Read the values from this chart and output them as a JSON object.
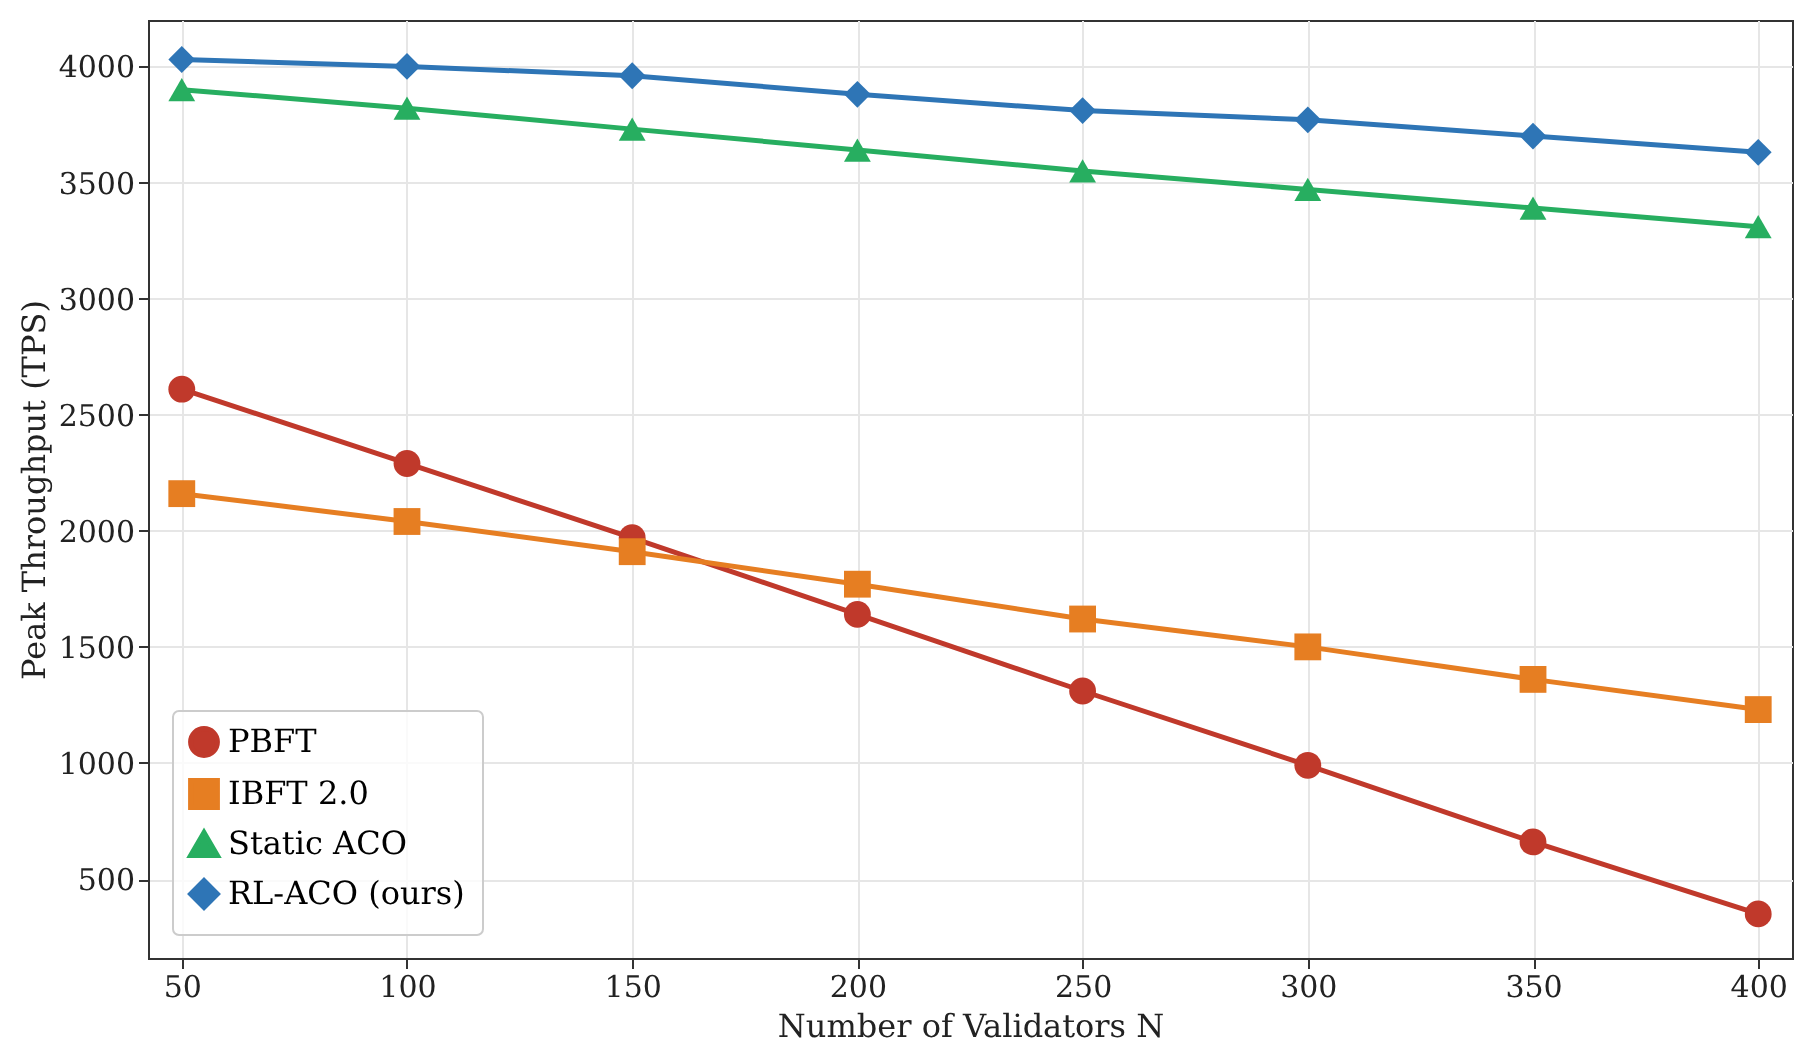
{
  "chart_data": {
    "type": "line",
    "xlabel": "Number of Validators N",
    "ylabel": "Peak Throughput (TPS)",
    "x": [
      50,
      100,
      150,
      200,
      250,
      300,
      350,
      400
    ],
    "series": [
      {
        "name": "PBFT",
        "color": "#c0392b",
        "marker": "circle",
        "values": [
          2610,
          2290,
          1970,
          1640,
          1310,
          990,
          660,
          350
        ]
      },
      {
        "name": "IBFT 2.0",
        "color": "#e67e22",
        "marker": "square",
        "values": [
          2160,
          2040,
          1910,
          1770,
          1620,
          1500,
          1360,
          1230
        ]
      },
      {
        "name": "Static ACO",
        "color": "#27ae60",
        "marker": "triangle",
        "values": [
          3900,
          3820,
          3730,
          3640,
          3550,
          3470,
          3390,
          3310
        ]
      },
      {
        "name": "RL-ACO (ours)",
        "color": "#2e75b6",
        "marker": "diamond",
        "values": [
          4030,
          4000,
          3960,
          3880,
          3810,
          3770,
          3700,
          3630
        ]
      }
    ],
    "xlim": [
      42.5,
      407.5
    ],
    "xticks": [
      50,
      100,
      150,
      200,
      250,
      300,
      350,
      400
    ],
    "ylim": [
      160,
      4200
    ],
    "yticks": [
      500,
      1000,
      1500,
      2000,
      2500,
      3000,
      3500,
      4000
    ],
    "grid": true,
    "legend": "bottom left",
    "line_style": "solid"
  }
}
